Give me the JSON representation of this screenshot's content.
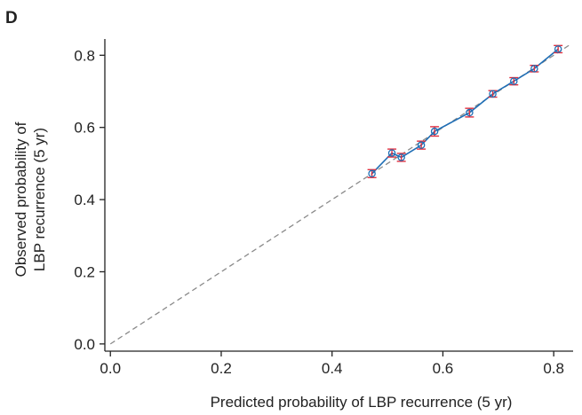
{
  "panel_label": "D",
  "chart_data": {
    "type": "scatter",
    "title": "",
    "xlabel": "Predicted probability of LBP recurrence (5 yr)",
    "ylabel_lines": [
      "Observed probability of",
      "LBP recurrence (5 yr)"
    ],
    "xlim": [
      -0.01,
      0.835
    ],
    "ylim": [
      -0.02,
      0.845
    ],
    "xticks": [
      0.0,
      0.2,
      0.4,
      0.6,
      0.8
    ],
    "yticks": [
      0.0,
      0.2,
      0.4,
      0.6,
      0.8
    ],
    "tick_labels_x": [
      "0.0",
      "0.2",
      "0.4",
      "0.6",
      "0.8"
    ],
    "tick_labels_y": [
      "0.0",
      "0.2",
      "0.4",
      "0.6",
      "0.8"
    ],
    "grid": false,
    "legend": "none",
    "reference_line": {
      "x": [
        0.0,
        0.83
      ],
      "y": [
        0.0,
        0.83
      ],
      "style": "dashed",
      "color": "#8a8a8a"
    },
    "series": [
      {
        "x": [
          0.472,
          0.508,
          0.525,
          0.561,
          0.585,
          0.648,
          0.69,
          0.728,
          0.765,
          0.808
        ],
        "y": [
          0.472,
          0.529,
          0.517,
          0.551,
          0.589,
          0.641,
          0.693,
          0.728,
          0.763,
          0.817
        ],
        "err": [
          0.011,
          0.011,
          0.011,
          0.011,
          0.013,
          0.012,
          0.009,
          0.01,
          0.009,
          0.01
        ],
        "line_color": "#1f6eb5",
        "marker_color": "#1f6eb5",
        "errorbar_color": "#e03040"
      }
    ]
  }
}
